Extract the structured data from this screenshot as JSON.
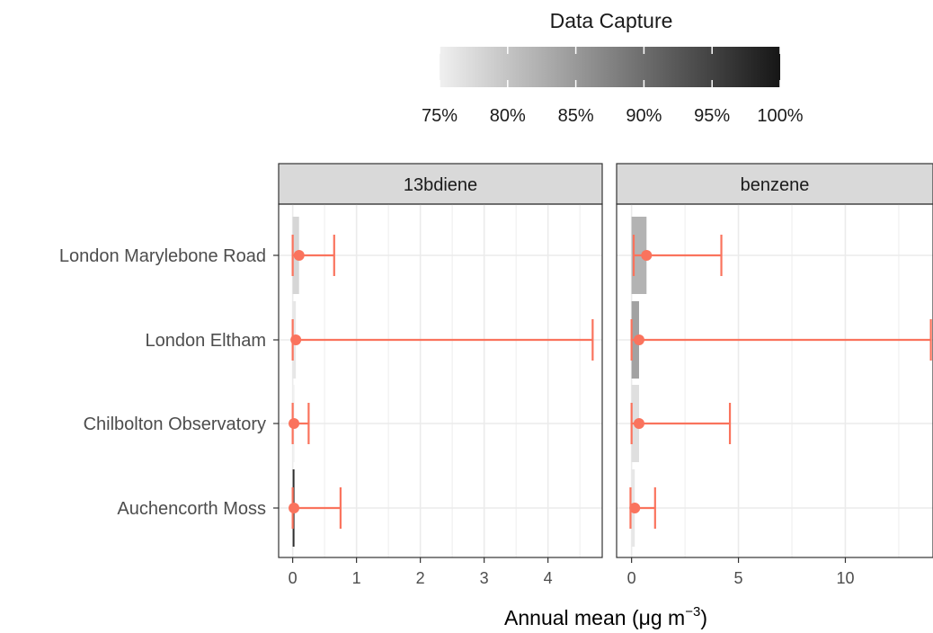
{
  "chart_data": {
    "type": "scatter",
    "legend": {
      "title": "Data Capture",
      "placement": "top",
      "range": [
        75,
        100
      ],
      "ticks": [
        "75%",
        "80%",
        "85%",
        "90%",
        "95%",
        "100%"
      ],
      "colors": {
        "low": "#f0f0f0",
        "high": "#161616"
      }
    },
    "xlabel": {
      "main": "Annual mean (μg m",
      "sup": "−3",
      "close": ")"
    },
    "ylabel": "",
    "categories": [
      "London Marylebone Road",
      "London Eltham",
      "Chilbolton Observatory",
      "Auchencorth Moss"
    ],
    "point_color": "#fa735d",
    "grid": true,
    "panels": [
      {
        "name": "13bdiene",
        "xlim": [
          -0.22,
          4.85
        ],
        "xticks": [
          0,
          1,
          2,
          3,
          4
        ],
        "series": [
          {
            "site": "London Marylebone Road",
            "mean": 0.1,
            "low": 0.0,
            "high": 0.65,
            "capture": 78
          },
          {
            "site": "London Eltham",
            "mean": 0.05,
            "low": 0.0,
            "high": 4.7,
            "capture": 76
          },
          {
            "site": "Chilbolton Observatory",
            "mean": 0.02,
            "low": 0.0,
            "high": 0.25,
            "capture": 75
          },
          {
            "site": "Auchencorth Moss",
            "mean": 0.02,
            "low": 0.0,
            "high": 0.75,
            "capture": 97
          }
        ]
      },
      {
        "name": "benzene",
        "xlim": [
          -0.7,
          14.1
        ],
        "xticks": [
          0,
          5,
          10
        ],
        "series": [
          {
            "site": "London Marylebone Road",
            "mean": 0.7,
            "low": 0.1,
            "high": 4.2,
            "capture": 82
          },
          {
            "site": "London Eltham",
            "mean": 0.35,
            "low": 0.0,
            "high": 14.0,
            "capture": 84
          },
          {
            "site": "Chilbolton Observatory",
            "mean": 0.35,
            "low": 0.0,
            "high": 4.6,
            "capture": 77
          },
          {
            "site": "Auchencorth Moss",
            "mean": 0.15,
            "low": -0.05,
            "high": 1.1,
            "capture": 76
          }
        ]
      }
    ]
  }
}
